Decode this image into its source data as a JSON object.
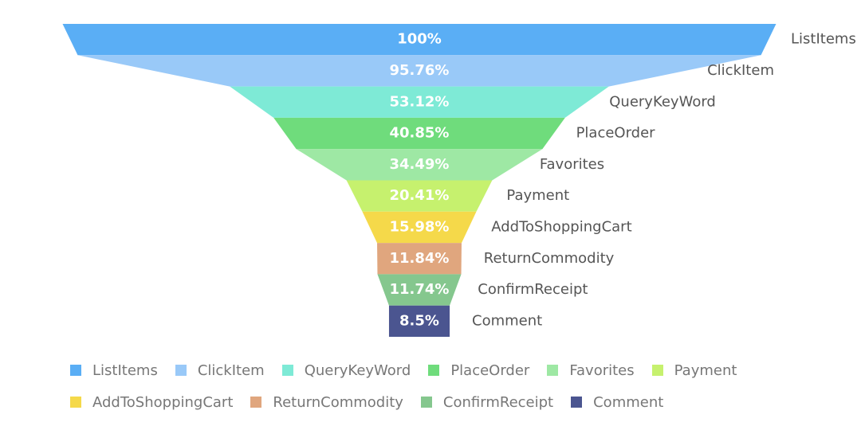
{
  "chart_data": {
    "type": "funnel",
    "categories": [
      "ListItems",
      "ClickItem",
      "QueryKeyWord",
      "PlaceOrder",
      "Favorites",
      "Payment",
      "AddToShoppingCart",
      "ReturnCommodity",
      "ConfirmReceipt",
      "Comment"
    ],
    "values": [
      100,
      95.76,
      53.12,
      40.85,
      34.49,
      20.41,
      15.98,
      11.84,
      11.74,
      8.5
    ],
    "value_labels": [
      "100%",
      "95.76%",
      "53.12%",
      "40.85%",
      "34.49%",
      "20.41%",
      "15.98%",
      "11.84%",
      "11.74%",
      "8.5%"
    ],
    "colors": [
      "#5aaef5",
      "#99c9f8",
      "#7eead6",
      "#6fdc7c",
      "#9ee8a4",
      "#c6f16e",
      "#f5d94a",
      "#e0a67e",
      "#85c78e",
      "#4b5590"
    ],
    "ylim": [
      0,
      100
    ],
    "legend": "bottom"
  }
}
